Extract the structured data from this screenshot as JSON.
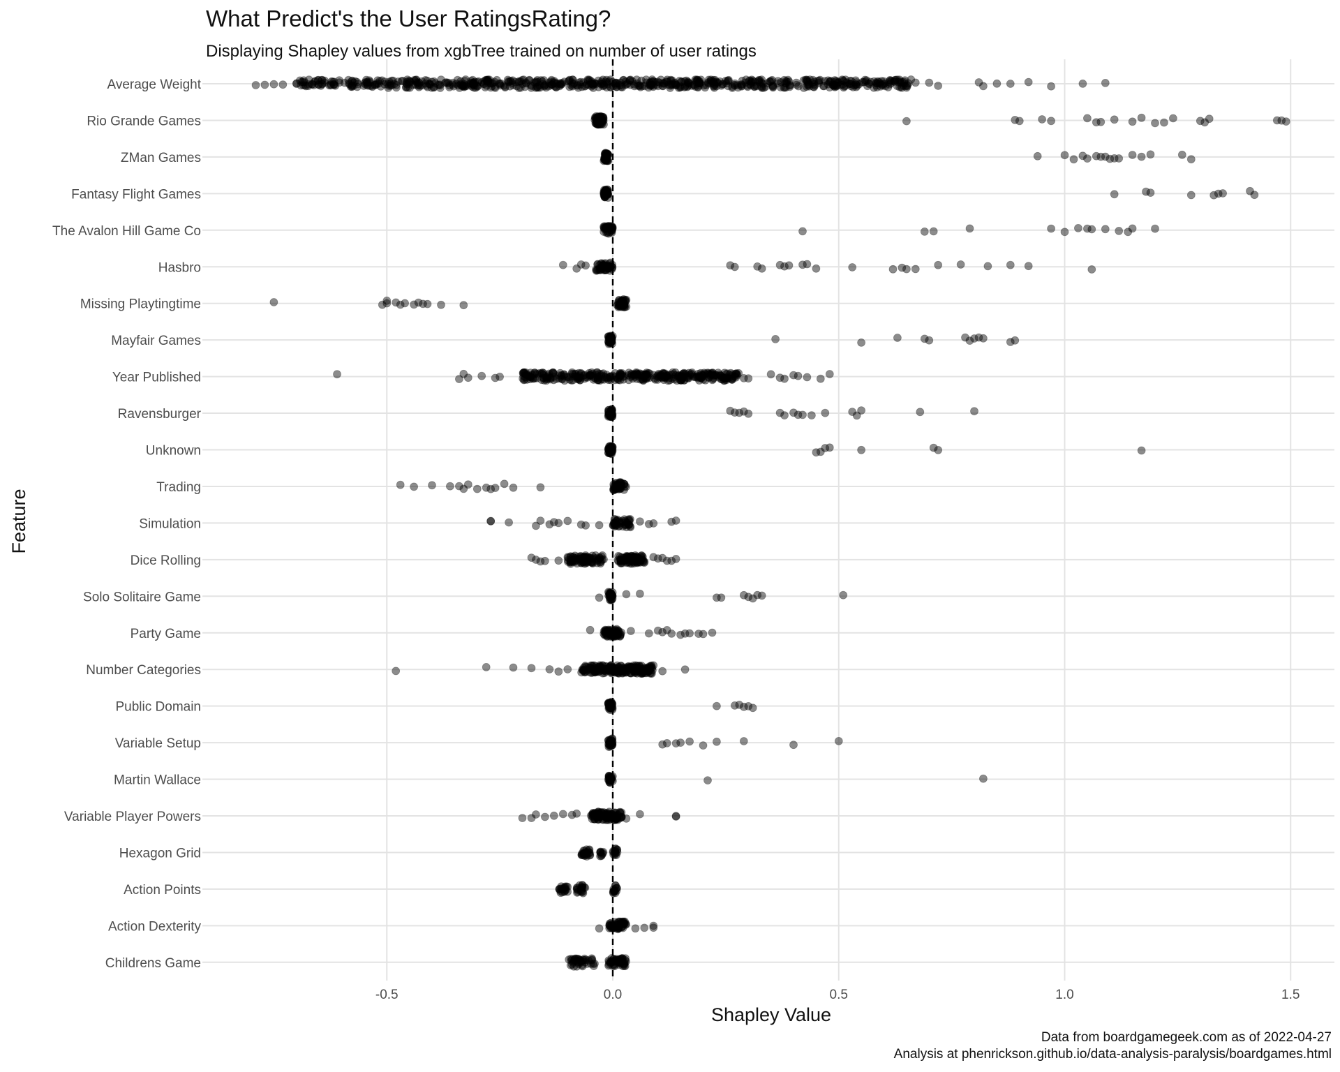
{
  "header": {
    "title": "What Predict's the User RatingsRating?",
    "subtitle": "Displaying Shapley values from xgbTree trained on number of user ratings"
  },
  "caption": {
    "line1": "Data from boardgamegeek.com as of 2022-04-27",
    "line2": "Analysis at phenrickson.github.io/data-analysis-paralysis/boardgames.html"
  },
  "chart_data": {
    "type": "scatter",
    "xlabel": "Shapley Value",
    "ylabel": "Feature",
    "xlim": [
      -0.9,
      1.57
    ],
    "x_ticks": [
      -0.5,
      0.0,
      0.5,
      1.0,
      1.5
    ],
    "x_tick_labels": [
      "-0.5",
      "0.0",
      "0.5",
      "1.0",
      "1.5"
    ],
    "reference_line": {
      "x": 0,
      "style": "dashed"
    },
    "grid": true,
    "point_color": "#000000",
    "point_alpha": 0.45,
    "features": [
      {
        "name": "Average Weight",
        "clusters": [
          [
            -0.7,
            0.66,
            700
          ]
        ],
        "points": [
          -0.79,
          -0.77,
          -0.75,
          -0.73,
          -0.69,
          0.67,
          0.7,
          0.72,
          0.81,
          0.82,
          0.85,
          0.88,
          0.92,
          0.97,
          1.04,
          1.09
        ]
      },
      {
        "name": "Rio Grande Games",
        "clusters": [
          [
            -0.04,
            -0.02,
            60
          ]
        ],
        "points": [
          0.65,
          0.89,
          0.9,
          0.95,
          0.97,
          1.05,
          1.07,
          1.08,
          1.11,
          1.15,
          1.17,
          1.2,
          1.22,
          1.24,
          1.3,
          1.31,
          1.32,
          1.47,
          1.48,
          1.49
        ]
      },
      {
        "name": "ZMan Games",
        "clusters": [
          [
            -0.02,
            -0.01,
            40
          ]
        ],
        "points": [
          0.94,
          1.0,
          1.02,
          1.04,
          1.05,
          1.07,
          1.08,
          1.09,
          1.1,
          1.11,
          1.12,
          1.15,
          1.17,
          1.19,
          1.26,
          1.28
        ]
      },
      {
        "name": "Fantasy Flight Games",
        "clusters": [
          [
            -0.02,
            -0.01,
            40
          ]
        ],
        "points": [
          1.11,
          1.18,
          1.19,
          1.28,
          1.33,
          1.34,
          1.35,
          1.41,
          1.42
        ]
      },
      {
        "name": "The Avalon Hill Game Co",
        "clusters": [
          [
            -0.02,
            0.0,
            40
          ]
        ],
        "points": [
          0.42,
          0.69,
          0.71,
          0.79,
          0.97,
          1.0,
          1.03,
          1.05,
          1.06,
          1.09,
          1.12,
          1.14,
          1.15,
          1.2
        ]
      },
      {
        "name": "Hasbro",
        "clusters": [
          [
            -0.04,
            0.0,
            50
          ]
        ],
        "points": [
          -0.11,
          -0.08,
          -0.07,
          -0.06,
          0.26,
          0.27,
          0.32,
          0.33,
          0.37,
          0.38,
          0.39,
          0.42,
          0.43,
          0.45,
          0.53,
          0.62,
          0.64,
          0.65,
          0.67,
          0.72,
          0.77,
          0.83,
          0.88,
          0.92,
          1.06
        ]
      },
      {
        "name": "Missing Playtingtime",
        "clusters": [
          [
            0.01,
            0.03,
            40
          ]
        ],
        "points": [
          -0.75,
          -0.51,
          -0.5,
          -0.5,
          -0.48,
          -0.47,
          -0.46,
          -0.44,
          -0.43,
          -0.42,
          -0.41,
          -0.38,
          -0.33
        ]
      },
      {
        "name": "Mayfair Games",
        "clusters": [
          [
            -0.01,
            0.0,
            35
          ]
        ],
        "points": [
          0.36,
          0.55,
          0.63,
          0.69,
          0.7,
          0.78,
          0.79,
          0.8,
          0.81,
          0.82,
          0.88,
          0.89
        ]
      },
      {
        "name": "Year Published",
        "clusters": [
          [
            -0.2,
            0.28,
            350
          ]
        ],
        "points": [
          -0.61,
          -0.34,
          -0.33,
          -0.32,
          -0.29,
          -0.26,
          -0.25,
          0.29,
          0.3,
          0.35,
          0.37,
          0.38,
          0.4,
          0.41,
          0.43,
          0.46,
          0.48
        ]
      },
      {
        "name": "Ravensburger",
        "clusters": [
          [
            -0.01,
            0.0,
            35
          ]
        ],
        "points": [
          0.26,
          0.27,
          0.28,
          0.29,
          0.3,
          0.37,
          0.38,
          0.4,
          0.41,
          0.42,
          0.44,
          0.47,
          0.53,
          0.54,
          0.55,
          0.68,
          0.8
        ]
      },
      {
        "name": "Unknown",
        "clusters": [
          [
            -0.01,
            0.0,
            35
          ]
        ],
        "points": [
          0.45,
          0.46,
          0.47,
          0.48,
          0.55,
          0.71,
          0.72,
          1.17
        ]
      },
      {
        "name": "Trading",
        "clusters": [
          [
            0.0,
            0.03,
            40
          ]
        ],
        "points": [
          -0.47,
          -0.44,
          -0.4,
          -0.36,
          -0.34,
          -0.33,
          -0.32,
          -0.3,
          -0.28,
          -0.27,
          -0.26,
          -0.24,
          -0.22,
          -0.16
        ]
      },
      {
        "name": "Simulation",
        "clusters": [
          [
            0.0,
            0.04,
            40
          ]
        ],
        "points": [
          -0.27,
          -0.27,
          -0.23,
          -0.17,
          -0.16,
          -0.14,
          -0.13,
          -0.12,
          -0.1,
          -0.07,
          -0.06,
          -0.03,
          0.06,
          0.08,
          0.09,
          0.13,
          0.14
        ]
      },
      {
        "name": "Dice Rolling",
        "clusters": [
          [
            -0.1,
            -0.02,
            80
          ],
          [
            0.01,
            0.07,
            80
          ]
        ],
        "points": [
          -0.18,
          -0.17,
          -0.16,
          -0.15,
          -0.12,
          0.09,
          0.1,
          0.11,
          0.12,
          0.13,
          0.14
        ]
      },
      {
        "name": "Solo Solitaire Game",
        "clusters": [
          [
            -0.01,
            0.0,
            30
          ]
        ],
        "points": [
          -0.03,
          0.03,
          0.06,
          0.23,
          0.24,
          0.29,
          0.3,
          0.31,
          0.32,
          0.33,
          0.51
        ]
      },
      {
        "name": "Party Game",
        "clusters": [
          [
            -0.02,
            0.02,
            60
          ]
        ],
        "points": [
          -0.05,
          0.04,
          0.08,
          0.1,
          0.11,
          0.12,
          0.13,
          0.15,
          0.16,
          0.17,
          0.19,
          0.2,
          0.22
        ]
      },
      {
        "name": "Number Categories",
        "clusters": [
          [
            -0.07,
            0.09,
            200
          ]
        ],
        "points": [
          -0.48,
          -0.28,
          -0.22,
          -0.18,
          -0.14,
          -0.12,
          -0.1,
          0.11,
          0.16
        ]
      },
      {
        "name": "Public Domain",
        "clusters": [
          [
            -0.01,
            0.0,
            30
          ]
        ],
        "points": [
          0.23,
          0.27,
          0.28,
          0.29,
          0.3,
          0.31
        ]
      },
      {
        "name": "Variable Setup",
        "clusters": [
          [
            -0.01,
            0.0,
            30
          ]
        ],
        "points": [
          0.11,
          0.12,
          0.14,
          0.15,
          0.17,
          0.2,
          0.23,
          0.29,
          0.4,
          0.5
        ]
      },
      {
        "name": "Martin Wallace",
        "clusters": [
          [
            -0.01,
            0.0,
            25
          ]
        ],
        "points": [
          0.21,
          0.82
        ]
      },
      {
        "name": "Variable Player Powers",
        "clusters": [
          [
            -0.05,
            0.02,
            100
          ]
        ],
        "points": [
          -0.2,
          -0.18,
          -0.17,
          -0.15,
          -0.13,
          -0.11,
          -0.09,
          -0.08,
          0.03,
          0.06,
          0.14,
          0.14
        ]
      },
      {
        "name": "Hexagon Grid",
        "clusters": [
          [
            -0.07,
            -0.05,
            25
          ],
          [
            -0.03,
            -0.02,
            10
          ],
          [
            0.0,
            0.01,
            15
          ]
        ],
        "points": []
      },
      {
        "name": "Action Points",
        "clusters": [
          [
            -0.12,
            -0.1,
            20
          ],
          [
            -0.08,
            -0.06,
            20
          ],
          [
            0.0,
            0.01,
            15
          ]
        ],
        "points": []
      },
      {
        "name": "Action Dexterity",
        "clusters": [
          [
            -0.01,
            0.03,
            50
          ]
        ],
        "points": [
          -0.03,
          0.05,
          0.07,
          0.09,
          0.09
        ]
      },
      {
        "name": "Childrens Game",
        "clusters": [
          [
            -0.1,
            -0.04,
            40
          ],
          [
            -0.01,
            0.03,
            50
          ]
        ],
        "points": []
      }
    ]
  }
}
